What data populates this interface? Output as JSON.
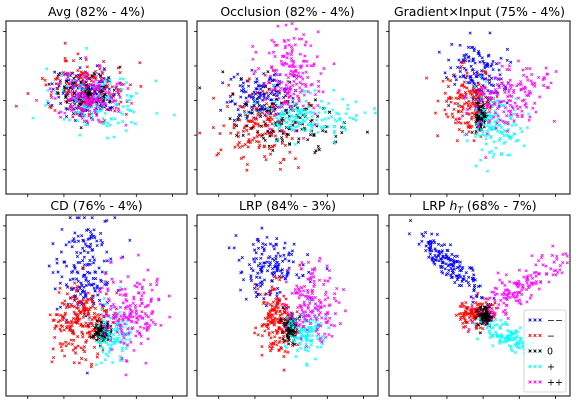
{
  "chart_data": [
    {
      "type": "scatter",
      "title": "Avg (82% - 4%)",
      "series": [
        {
          "class": "−−",
          "color": "#0000ff",
          "cx": 0.44,
          "cy": 0.4,
          "sx": 0.09,
          "sy": 0.07,
          "angle_deg": 0,
          "n": 130
        },
        {
          "class": "−",
          "color": "#ff0000",
          "cx": 0.44,
          "cy": 0.4,
          "sx": 0.11,
          "sy": 0.08,
          "angle_deg": 0,
          "n": 170
        },
        {
          "class": "0",
          "color": "#000000",
          "cx": 0.45,
          "cy": 0.42,
          "sx": 0.08,
          "sy": 0.06,
          "angle_deg": 0,
          "n": 120
        },
        {
          "class": "+",
          "color": "#00ffff",
          "cx": 0.52,
          "cy": 0.48,
          "sx": 0.13,
          "sy": 0.08,
          "angle_deg": 0,
          "n": 130
        },
        {
          "class": "++",
          "color": "#ff00ff",
          "cx": 0.46,
          "cy": 0.44,
          "sx": 0.1,
          "sy": 0.08,
          "angle_deg": 0,
          "n": 150
        }
      ]
    },
    {
      "type": "scatter",
      "title": "Occlusion (82% - 4%)",
      "series": [
        {
          "class": "−−",
          "color": "#0000ff",
          "cx": 0.34,
          "cy": 0.44,
          "sx": 0.08,
          "sy": 0.07,
          "angle_deg": 0,
          "n": 140
        },
        {
          "class": "−",
          "color": "#ff0000",
          "cx": 0.36,
          "cy": 0.6,
          "sx": 0.12,
          "sy": 0.12,
          "angle_deg": 0,
          "n": 160
        },
        {
          "class": "0",
          "color": "#000000",
          "cx": 0.52,
          "cy": 0.58,
          "sx": 0.16,
          "sy": 0.08,
          "angle_deg": 20,
          "n": 130
        },
        {
          "class": "+",
          "color": "#00ffff",
          "cx": 0.6,
          "cy": 0.55,
          "sx": 0.14,
          "sy": 0.06,
          "angle_deg": 0,
          "n": 140
        },
        {
          "class": "++",
          "color": "#ff00ff",
          "cx": 0.52,
          "cy": 0.3,
          "sx": 0.08,
          "sy": 0.13,
          "angle_deg": 0,
          "n": 170
        }
      ]
    },
    {
      "type": "scatter",
      "title": "Gradient×Input (75% - 4%)",
      "series": [
        {
          "class": "−−",
          "color": "#0000ff",
          "cx": 0.48,
          "cy": 0.3,
          "sx": 0.07,
          "sy": 0.1,
          "angle_deg": -10,
          "n": 140
        },
        {
          "class": "−",
          "color": "#ff0000",
          "cx": 0.44,
          "cy": 0.48,
          "sx": 0.07,
          "sy": 0.1,
          "angle_deg": 0,
          "n": 160
        },
        {
          "class": "0",
          "color": "#000000",
          "cx": 0.51,
          "cy": 0.56,
          "sx": 0.015,
          "sy": 0.04,
          "angle_deg": 0,
          "n": 110
        },
        {
          "class": "+",
          "color": "#00ffff",
          "cx": 0.58,
          "cy": 0.62,
          "sx": 0.07,
          "sy": 0.1,
          "angle_deg": 0,
          "n": 130
        },
        {
          "class": "++",
          "color": "#ff00ff",
          "cx": 0.66,
          "cy": 0.44,
          "sx": 0.12,
          "sy": 0.08,
          "angle_deg": -20,
          "n": 160
        }
      ]
    },
    {
      "type": "scatter",
      "title": "CD (76% - 4%)",
      "series": [
        {
          "class": "−−",
          "color": "#0000ff",
          "cx": 0.42,
          "cy": 0.3,
          "sx": 0.08,
          "sy": 0.16,
          "angle_deg": 0,
          "n": 180
        },
        {
          "class": "−",
          "color": "#ff0000",
          "cx": 0.42,
          "cy": 0.6,
          "sx": 0.08,
          "sy": 0.1,
          "angle_deg": 0,
          "n": 220
        },
        {
          "class": "0",
          "color": "#000000",
          "cx": 0.53,
          "cy": 0.65,
          "sx": 0.02,
          "sy": 0.03,
          "angle_deg": 0,
          "n": 110
        },
        {
          "class": "+",
          "color": "#00ffff",
          "cx": 0.6,
          "cy": 0.65,
          "sx": 0.05,
          "sy": 0.08,
          "angle_deg": 0,
          "n": 110
        },
        {
          "class": "++",
          "color": "#ff00ff",
          "cx": 0.7,
          "cy": 0.52,
          "sx": 0.09,
          "sy": 0.11,
          "angle_deg": 0,
          "n": 180
        }
      ]
    },
    {
      "type": "scatter",
      "title": "LRP (84% - 3%)",
      "series": [
        {
          "class": "−−",
          "color": "#0000ff",
          "cx": 0.4,
          "cy": 0.3,
          "sx": 0.09,
          "sy": 0.08,
          "angle_deg": 25,
          "n": 150
        },
        {
          "class": "−",
          "color": "#ff0000",
          "cx": 0.44,
          "cy": 0.58,
          "sx": 0.05,
          "sy": 0.1,
          "angle_deg": 0,
          "n": 170
        },
        {
          "class": "0",
          "color": "#000000",
          "cx": 0.52,
          "cy": 0.62,
          "sx": 0.02,
          "sy": 0.04,
          "angle_deg": 0,
          "n": 100
        },
        {
          "class": "+",
          "color": "#00ffff",
          "cx": 0.6,
          "cy": 0.64,
          "sx": 0.05,
          "sy": 0.07,
          "angle_deg": 0,
          "n": 120
        },
        {
          "class": "++",
          "color": "#ff00ff",
          "cx": 0.64,
          "cy": 0.48,
          "sx": 0.07,
          "sy": 0.1,
          "angle_deg": 0,
          "n": 160
        }
      ]
    },
    {
      "type": "scatter",
      "title": "LRP h_T (68% - 7%)",
      "legend": {
        "placement": "lower-right",
        "entries": [
          "−−",
          "−",
          "0",
          "+",
          "++"
        ]
      },
      "series": [
        {
          "class": "−−",
          "color": "#0000ff",
          "cx": 0.34,
          "cy": 0.28,
          "sx": 0.13,
          "sy": 0.03,
          "angle_deg": 45,
          "n": 160
        },
        {
          "class": "−",
          "color": "#ff0000",
          "cx": 0.48,
          "cy": 0.55,
          "sx": 0.05,
          "sy": 0.04,
          "angle_deg": 0,
          "n": 130
        },
        {
          "class": "0",
          "color": "#000000",
          "cx": 0.53,
          "cy": 0.56,
          "sx": 0.02,
          "sy": 0.03,
          "angle_deg": 0,
          "n": 90
        },
        {
          "class": "+",
          "color": "#00ffff",
          "cx": 0.66,
          "cy": 0.67,
          "sx": 0.1,
          "sy": 0.03,
          "angle_deg": 25,
          "n": 130
        },
        {
          "class": "++",
          "color": "#ff00ff",
          "cx": 0.72,
          "cy": 0.4,
          "sx": 0.15,
          "sy": 0.04,
          "angle_deg": -35,
          "n": 150
        }
      ]
    }
  ]
}
